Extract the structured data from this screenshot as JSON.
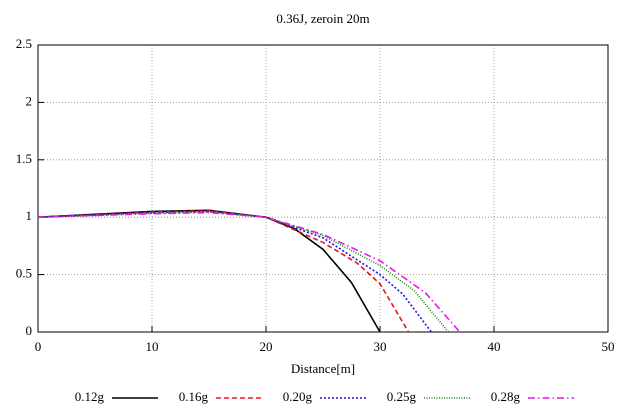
{
  "chart_data": {
    "type": "line",
    "title": "0.36J, zeroin 20m",
    "x_label": "Distance[m]",
    "xlim": [
      0,
      50
    ],
    "xticks": [
      0,
      10,
      20,
      30,
      40,
      50
    ],
    "ylim": [
      0,
      2.5
    ],
    "yticks": [
      0,
      0.5,
      1,
      1.5,
      2,
      2.5
    ],
    "grid": true,
    "legend": "bottom",
    "series": [
      {
        "name": "0.12g",
        "color": "#000000",
        "x": [
          0,
          5,
          10,
          15,
          20,
          22.5,
          25,
          27.5,
          30
        ],
        "values": [
          1,
          1.025,
          1.05,
          1.06,
          1,
          0.9,
          0.72,
          0.43,
          0
        ]
      },
      {
        "name": "0.16g",
        "color": "#e8141c",
        "x": [
          0,
          5,
          10,
          15,
          20,
          25,
          28,
          30,
          32.5
        ],
        "values": [
          1,
          1.02,
          1.045,
          1.055,
          1,
          0.78,
          0.6,
          0.42,
          0
        ]
      },
      {
        "name": "0.20g",
        "color": "#1a1ae6",
        "x": [
          0,
          5,
          10,
          15,
          20,
          25,
          30,
          32,
          34.5
        ],
        "values": [
          1,
          1.02,
          1.04,
          1.05,
          1,
          0.82,
          0.5,
          0.33,
          0
        ]
      },
      {
        "name": "0.25g",
        "color": "#168c16",
        "x": [
          0,
          5,
          10,
          15,
          20,
          25,
          30,
          33,
          36
        ],
        "values": [
          1,
          1.015,
          1.035,
          1.045,
          1,
          0.84,
          0.58,
          0.36,
          0
        ]
      },
      {
        "name": "0.28g",
        "color": "#e619e6",
        "x": [
          0,
          5,
          10,
          15,
          20,
          25,
          30,
          34,
          37
        ],
        "values": [
          1,
          1.015,
          1.03,
          1.04,
          1,
          0.85,
          0.62,
          0.34,
          0
        ]
      }
    ]
  }
}
